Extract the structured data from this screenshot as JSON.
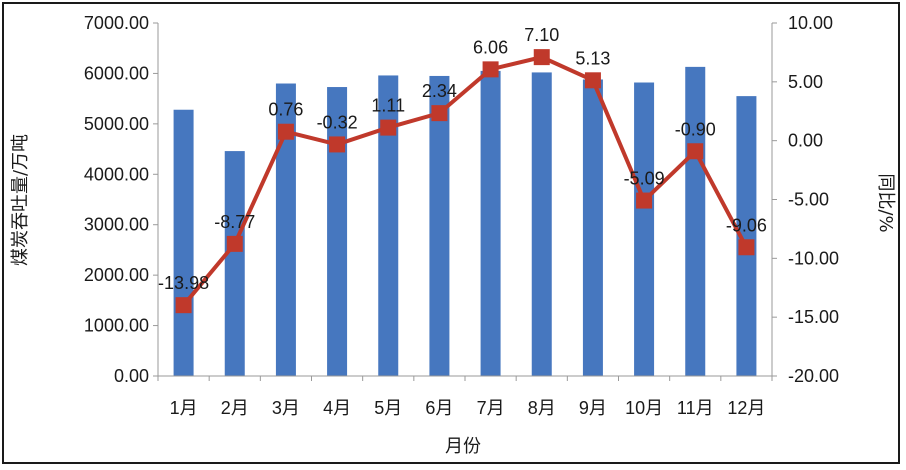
{
  "chart_data": {
    "type": "bar",
    "categories": [
      "1月",
      "2月",
      "3月",
      "4月",
      "5月",
      "6月",
      "7月",
      "8月",
      "9月",
      "10月",
      "11月",
      "12月"
    ],
    "xlabel": "月份",
    "ylabel": "煤炭吞吐量/万吨",
    "y2label": "同比/%",
    "ylim": [
      0,
      7000
    ],
    "y_ticks": [
      "0.00",
      "1000.00",
      "2000.00",
      "3000.00",
      "4000.00",
      "5000.00",
      "6000.00",
      "7000.00"
    ],
    "y2lim": [
      -20,
      10
    ],
    "y2_ticks": [
      "-20.00",
      "-15.00",
      "-10.00",
      "-5.00",
      "0.00",
      "5.00",
      "10.00"
    ],
    "grid": false,
    "series": [
      {
        "type": "bar",
        "axis": "left",
        "color": "#4677BF",
        "values": [
          5280,
          4460,
          5800,
          5730,
          5960,
          5950,
          6050,
          6020,
          5880,
          5820,
          6130,
          5550
        ]
      },
      {
        "type": "line",
        "axis": "right",
        "color": "#C0392B",
        "values": [
          -13.98,
          -8.77,
          0.76,
          -0.32,
          1.11,
          2.34,
          6.06,
          7.1,
          5.13,
          -5.09,
          -0.9,
          -9.06
        ],
        "labels": [
          "-13.98",
          "-8.77",
          "0.76",
          "-0.32",
          "1.11",
          "2.34",
          "6.06",
          "7.10",
          "5.13",
          "-5.09",
          "-0.90",
          "-9.06"
        ]
      }
    ]
  }
}
